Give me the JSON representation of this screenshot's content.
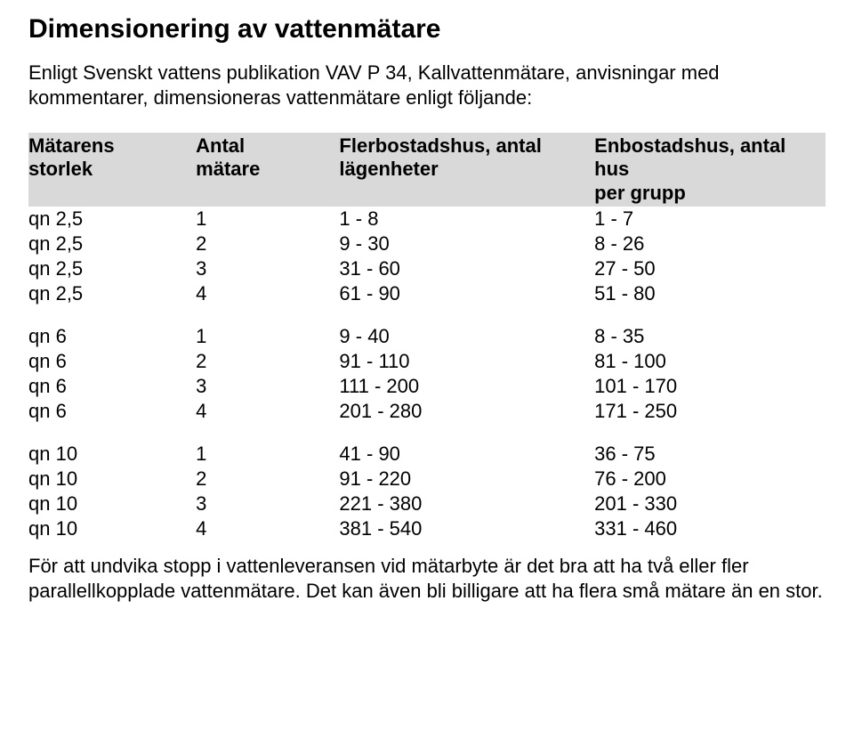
{
  "title": "Dimensionering av vattenmätare",
  "intro": "Enligt Svenskt vattens publikation VAV P 34, Kallvattenmätare, anvisningar med kommentarer, dimensioneras vattenmätare enligt följande:",
  "table": {
    "headers": {
      "c0a": "Mätarens",
      "c0b": "storlek",
      "c1a": "Antal",
      "c1b": "mätare",
      "c2a": "Flerbostadshus, antal",
      "c2b": "lägenheter",
      "c3a": "Enbostadshus, antal hus",
      "c3b": "per grupp"
    },
    "groups": [
      [
        {
          "c0": "qn 2,5",
          "c1": "1",
          "c2": "1 - 8",
          "c3": "1 - 7"
        },
        {
          "c0": "qn 2,5",
          "c1": "2",
          "c2": "9 - 30",
          "c3": "8 - 26"
        },
        {
          "c0": "qn 2,5",
          "c1": "3",
          "c2": "31 - 60",
          "c3": "27 - 50"
        },
        {
          "c0": "qn 2,5",
          "c1": "4",
          "c2": "61 - 90",
          "c3": "51 - 80"
        }
      ],
      [
        {
          "c0": "qn 6",
          "c1": "1",
          "c2": "9 - 40",
          "c3": "8 - 35"
        },
        {
          "c0": "qn 6",
          "c1": "2",
          "c2": "91 - 110",
          "c3": "81 - 100"
        },
        {
          "c0": "qn 6",
          "c1": "3",
          "c2": "111 - 200",
          "c3": "101 - 170"
        },
        {
          "c0": "qn 6",
          "c1": "4",
          "c2": "201 - 280",
          "c3": "171 - 250"
        }
      ],
      [
        {
          "c0": "qn 10",
          "c1": "1",
          "c2": "41 - 90",
          "c3": "36 - 75"
        },
        {
          "c0": "qn 10",
          "c1": "2",
          "c2": "91 - 220",
          "c3": "76 - 200"
        },
        {
          "c0": "qn 10",
          "c1": "3",
          "c2": "221 - 380",
          "c3": "201 - 330"
        },
        {
          "c0": "qn 10",
          "c1": "4",
          "c2": "381 - 540",
          "c3": "331 - 460"
        }
      ]
    ]
  },
  "closing": "För att undvika stopp i vattenleveransen vid mätarbyte är det bra att ha två eller fler parallellkopplade vattenmätare. Det kan även bli billigare att ha flera små mätare än en stor."
}
